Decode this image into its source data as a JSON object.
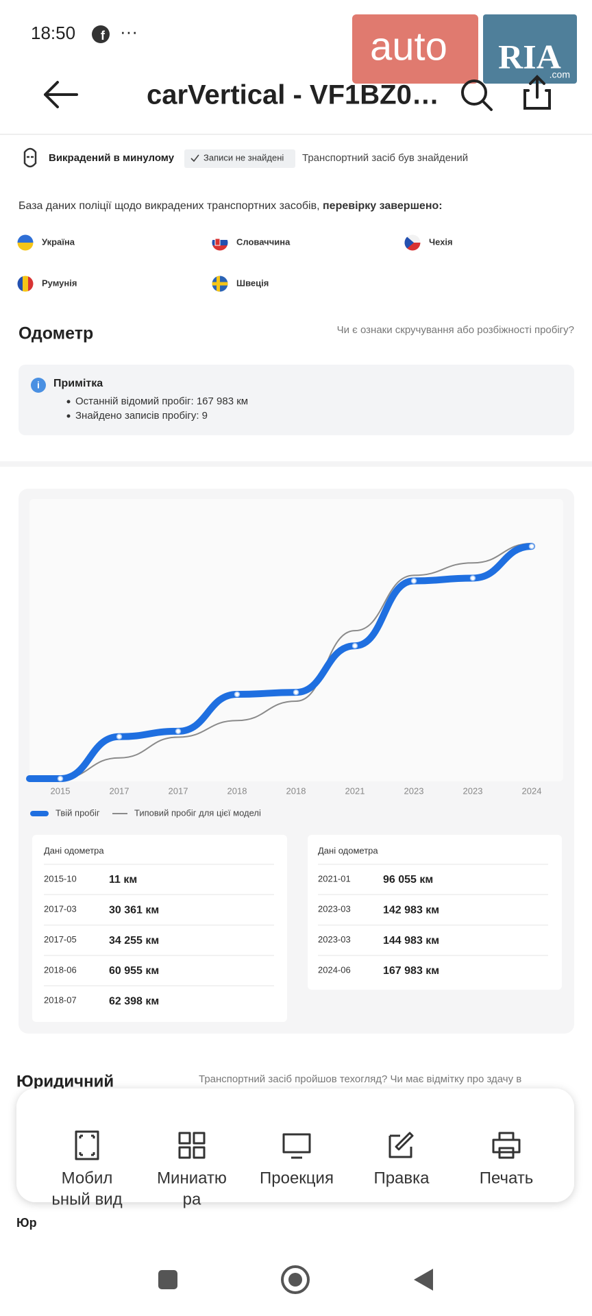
{
  "status_bar": {
    "time": "18:50",
    "dots": "···"
  },
  "watermark": {
    "brand": "auto",
    "ria": "RIA",
    "domain": ".com"
  },
  "header": {
    "title": "carVertical - VF1BZ0…"
  },
  "theft": {
    "label": "Викрадений в минулому",
    "badge": "Записи не знайдені",
    "result": "Транспортний засіб був знайдений"
  },
  "police": {
    "text": "База даних поліції щодо викрадених транспортних засобів, ",
    "bold": "перевірку завершено:",
    "countries": [
      "Україна",
      "Словаччина",
      "Чехія",
      "Румунія",
      "Швеція"
    ]
  },
  "odometer": {
    "title": "Одометр",
    "link": "Чи є ознаки скручування або розбіжності пробігу?",
    "note_title": "Примітка",
    "note_items": [
      "Останній відомий пробіг: 167 983 км",
      "Знайдено записів пробігу: 9"
    ],
    "table_title": "Дані одометра"
  },
  "chart_data": {
    "type": "line",
    "categories": [
      "2015",
      "2017",
      "2017",
      "2018",
      "2018",
      "2021",
      "2023",
      "2023",
      "2024"
    ],
    "series": [
      {
        "name": "Твій пробіг",
        "color": "#1f6fe0",
        "values": [
          11,
          30361,
          34255,
          60955,
          62398,
          96055,
          142983,
          144983,
          167983
        ],
        "dates": [
          "2015-10",
          "2017-03",
          "2017-05",
          "2018-06",
          "2018-07",
          "2021-01",
          "2023-03",
          "2023-03",
          "2024-06"
        ],
        "value_labels": [
          "11 км",
          "30 361 км",
          "34 255 км",
          "60 955 км",
          "62 398 км",
          "96 055 км",
          "142 983 км",
          "144 983 км",
          "167 983 км"
        ]
      },
      {
        "name": "Типовий пробіг для цієї моделі",
        "color": "#8a8a8a",
        "values": [
          0,
          15000,
          30000,
          42000,
          56000,
          107000,
          147000,
          156000,
          170000
        ]
      }
    ]
  },
  "legal": {
    "title": "Юридичний",
    "text": "Транспортний засіб пройшов техогляд? Чи має відмітку про здачу в",
    "cut": "Юр"
  },
  "sheet": {
    "items": [
      [
        "Мобил",
        "ьный вид"
      ],
      [
        "Миниатю",
        "ра"
      ],
      [
        "Проекция"
      ],
      [
        "Правка"
      ],
      [
        "Печать"
      ]
    ]
  }
}
